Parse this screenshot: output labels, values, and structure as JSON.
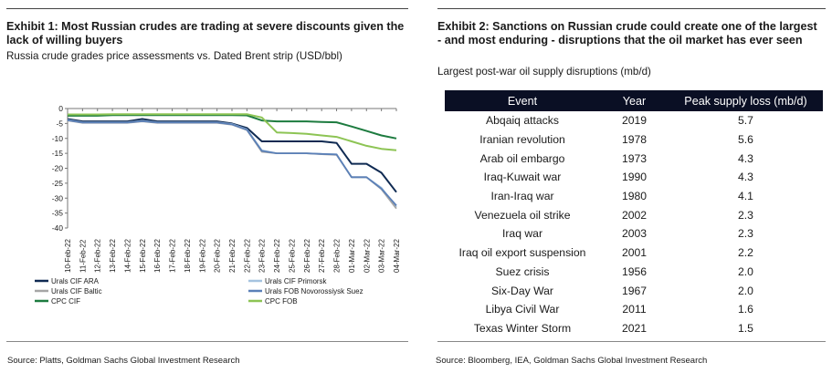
{
  "exhibit1": {
    "title": "Exhibit 1: Most Russian crudes are trading at severe discounts given the lack of willing buyers",
    "subtitle": "Russia crude grades price assessments vs. Dated Brent strip (USD/bbl)",
    "source": "Source: Platts, Goldman Sachs Global Investment Research"
  },
  "exhibit2": {
    "title": "Exhibit 2: Sanctions on Russian crude could create one of the largest - and most enduring - disruptions that the oil market has ever seen",
    "subtitle": "Largest post-war oil supply disruptions (mb/d)",
    "source": "Source: Bloomberg, IEA, Goldman Sachs Global Investment Research",
    "headers": [
      "Event",
      "Year",
      "Peak supply loss (mb/d)"
    ],
    "rows": [
      [
        "Abqaiq attacks",
        "2019",
        "5.7"
      ],
      [
        "Iranian revolution",
        "1978",
        "5.6"
      ],
      [
        "Arab oil embargo",
        "1973",
        "4.3"
      ],
      [
        "Iraq-Kuwait war",
        "1990",
        "4.3"
      ],
      [
        "Iran-Iraq war",
        "1980",
        "4.1"
      ],
      [
        "Venezuela oil strike",
        "2002",
        "2.3"
      ],
      [
        "Iraq war",
        "2003",
        "2.3"
      ],
      [
        "Iraq oil export suspension",
        "2001",
        "2.2"
      ],
      [
        "Suez crisis",
        "1956",
        "2.0"
      ],
      [
        "Six-Day War",
        "1967",
        "2.0"
      ],
      [
        "Libya Civil War",
        "2011",
        "1.6"
      ],
      [
        "Texas Winter Storm",
        "2021",
        "1.5"
      ]
    ]
  },
  "chart_data": {
    "type": "line",
    "title": "Exhibit 1: Most Russian crudes are trading at severe discounts given the lack of willing buyers",
    "subtitle": "Russia crude grades price assessments vs. Dated Brent strip (USD/bbl)",
    "ylim": [
      -40,
      0
    ],
    "yticks": [
      0,
      -5,
      -10,
      -15,
      -20,
      -25,
      -30,
      -35,
      -40
    ],
    "grid": false,
    "legend_position": "bottom",
    "x": [
      "10-Feb-22",
      "11-Feb-22",
      "12-Feb-22",
      "13-Feb-22",
      "14-Feb-22",
      "15-Feb-22",
      "16-Feb-22",
      "17-Feb-22",
      "18-Feb-22",
      "19-Feb-22",
      "20-Feb-22",
      "21-Feb-22",
      "22-Feb-22",
      "23-Feb-22",
      "24-Feb-22",
      "25-Feb-22",
      "26-Feb-22",
      "27-Feb-22",
      "28-Feb-22",
      "01-Mar-22",
      "02-Mar-22",
      "03-Mar-22",
      "04-Mar-22"
    ],
    "series": [
      {
        "name": "Urals CIF ARA",
        "color": "#0f2a52",
        "width": 2.0,
        "values": [
          -3.5,
          -4.3,
          -4.3,
          -4.3,
          -4.3,
          -3.5,
          -4.3,
          -4.3,
          -4.3,
          -4.3,
          -4.3,
          -5,
          -6.5,
          -11,
          -11,
          -11,
          -11,
          -11,
          -11.5,
          -18.5,
          -18.5,
          -21.5,
          -28
        ]
      },
      {
        "name": "Urals CIF Primorsk",
        "color": "#a5c3df",
        "width": 1.8,
        "values": [
          -3.8,
          -4.6,
          -4.6,
          -4.6,
          -4.6,
          -4.1,
          -4.6,
          -4.6,
          -4.6,
          -4.6,
          -4.6,
          -5.2,
          -7,
          -14,
          -15,
          -15,
          -15,
          -15.2,
          -15.3,
          -23,
          -23,
          -26.5,
          -33
        ]
      },
      {
        "name": "Urals CIF Baltic",
        "color": "#a6a6a6",
        "width": 1.8,
        "values": [
          -4,
          -4.8,
          -4.8,
          -4.8,
          -4.8,
          -4.3,
          -4.8,
          -4.8,
          -4.8,
          -4.8,
          -4.8,
          -5.4,
          -7.2,
          -14.5,
          -15,
          -15,
          -15,
          -15.3,
          -15.5,
          -23,
          -23,
          -27,
          -33.5
        ]
      },
      {
        "name": "Urals FOB Novorossiysk Suez",
        "color": "#5b80b8",
        "width": 1.8,
        "values": [
          -3.9,
          -4.7,
          -4.7,
          -4.7,
          -4.7,
          -4.2,
          -4.7,
          -4.7,
          -4.7,
          -4.7,
          -4.7,
          -5.3,
          -7.1,
          -14.2,
          -15,
          -15,
          -15,
          -15.2,
          -15.4,
          -23,
          -23,
          -26.8,
          -32.5
        ]
      },
      {
        "name": "CPC CIF",
        "color": "#1d7b3f",
        "width": 2.0,
        "values": [
          -2.4,
          -2.4,
          -2.4,
          -2.2,
          -2.2,
          -2.2,
          -2.2,
          -2.2,
          -2.2,
          -2.2,
          -2.2,
          -2.2,
          -2.3,
          -4,
          -4.3,
          -4.3,
          -4.3,
          -4.5,
          -4.6,
          -6,
          -7.5,
          -9,
          -10
        ]
      },
      {
        "name": "CPC FOB",
        "color": "#8dc454",
        "width": 2.0,
        "values": [
          -2,
          -2,
          -2,
          -1.9,
          -1.9,
          -1.9,
          -1.9,
          -1.9,
          -1.9,
          -1.9,
          -1.9,
          -1.9,
          -1.9,
          -3,
          -8,
          -8.2,
          -8.5,
          -9,
          -9.5,
          -11,
          -12.5,
          -13.5,
          -14
        ]
      }
    ]
  }
}
